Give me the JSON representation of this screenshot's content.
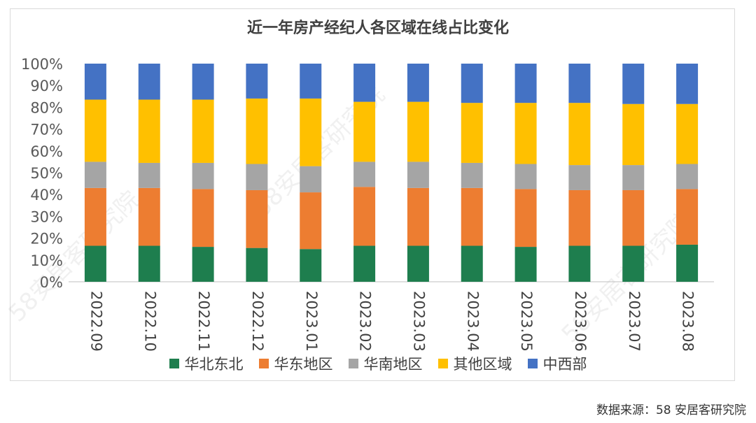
{
  "watermark": "58安居客研究院",
  "source_text": "数据来源：58 安居客研究院",
  "chart_data": {
    "type": "bar",
    "stacked": true,
    "title": "近一年房产经纪人各区域在线占比变化",
    "categories": [
      "2022.09",
      "2022.10",
      "2022.11",
      "2022.12",
      "2023.01",
      "2023.02",
      "2023.03",
      "2023.04",
      "2023.05",
      "2023.06",
      "2023.07",
      "2023.08"
    ],
    "ylim": [
      0,
      100
    ],
    "yticks": [
      "0%",
      "10%",
      "20%",
      "30%",
      "40%",
      "50%",
      "60%",
      "70%",
      "80%",
      "90%",
      "100%"
    ],
    "series": [
      {
        "name": "华北东北",
        "color": "#1e7e4e",
        "values": [
          16.5,
          16.5,
          16,
          15.5,
          15,
          16.5,
          16.5,
          16.5,
          16,
          16.5,
          16.5,
          17
        ]
      },
      {
        "name": "华东地区",
        "color": "#ed7d31",
        "values": [
          26.5,
          26.5,
          26.5,
          26.5,
          26,
          27,
          26.5,
          26.5,
          26.5,
          25.5,
          25.5,
          25.5
        ]
      },
      {
        "name": "华南地区",
        "color": "#a5a5a5",
        "values": [
          12,
          11.5,
          12,
          12,
          12,
          11.5,
          12,
          11.5,
          11.5,
          11.5,
          11.5,
          11.5
        ]
      },
      {
        "name": "其他区域",
        "color": "#ffc000",
        "values": [
          28.5,
          29,
          29,
          30,
          31,
          27.5,
          27.5,
          27.5,
          28,
          28.5,
          28,
          27.5
        ]
      },
      {
        "name": "中西部",
        "color": "#4472c4",
        "values": [
          16.5,
          16.5,
          16.5,
          16,
          16,
          17.5,
          17.5,
          18,
          18,
          18,
          18.5,
          18.5
        ]
      }
    ]
  }
}
